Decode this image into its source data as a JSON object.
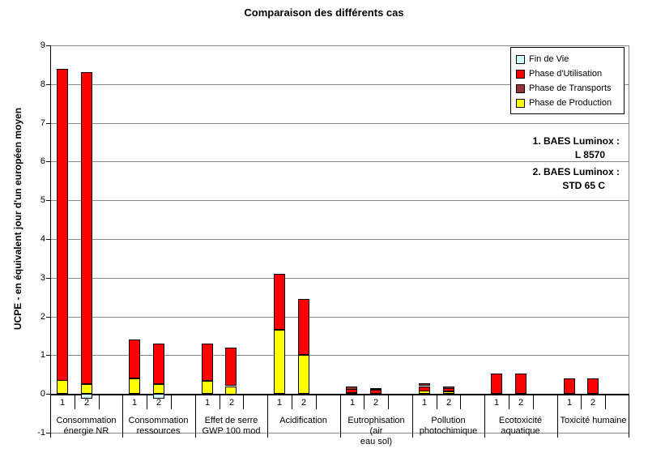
{
  "chart_data": {
    "type": "bar",
    "stacked": true,
    "title": "Comparaison des différents cas",
    "ylabel": "UCPE - en équivalent jour d'un européen moyen",
    "xlabel": "",
    "ylim": [
      -1,
      9
    ],
    "ytick_step": 1,
    "grid": true,
    "legend_position": "top-right",
    "stack_order_bottom_to_top": [
      "production",
      "utilisation",
      "transports"
    ],
    "series_meta": {
      "fin_de_vie": {
        "label": "Fin de Vie",
        "color": "#CCFFFF"
      },
      "utilisation": {
        "label": "Phase d'Utilisation",
        "color": "#FF0000"
      },
      "transports": {
        "label": "Phase de Transports",
        "color": "#993333"
      },
      "production": {
        "label": "Phase de Production",
        "color": "#FFFF00"
      }
    },
    "groups": [
      {
        "label_lines": [
          "Consommation",
          "énergie NR"
        ],
        "bars": [
          {
            "label": "1",
            "production": 0.35,
            "utilisation": 8.05,
            "transports": 0,
            "fin_de_vie": 0
          },
          {
            "label": "2",
            "production": 0.25,
            "utilisation": 8.05,
            "transports": 0,
            "fin_de_vie": -0.12
          }
        ]
      },
      {
        "label_lines": [
          "Consommation",
          "ressources"
        ],
        "bars": [
          {
            "label": "1",
            "production": 0.4,
            "utilisation": 1.0,
            "transports": 0,
            "fin_de_vie": 0
          },
          {
            "label": "2",
            "production": 0.25,
            "utilisation": 1.05,
            "transports": 0,
            "fin_de_vie": -0.12
          }
        ]
      },
      {
        "label_lines": [
          "Effet de serre",
          "GWP 100 mod"
        ],
        "bars": [
          {
            "label": "1",
            "production": 0.33,
            "utilisation": 0.97,
            "transports": 0,
            "fin_de_vie": 0
          },
          {
            "label": "2",
            "production": 0.2,
            "utilisation": 1.0,
            "transports": 0,
            "fin_de_vie": 0
          }
        ]
      },
      {
        "label_lines": [
          "Acidification"
        ],
        "bars": [
          {
            "label": "1",
            "production": 1.65,
            "utilisation": 1.45,
            "transports": 0,
            "fin_de_vie": 0
          },
          {
            "label": "2",
            "production": 1.0,
            "utilisation": 1.45,
            "transports": 0,
            "fin_de_vie": 0
          }
        ]
      },
      {
        "label_lines": [
          "Eutrophisation (air",
          "eau sol)"
        ],
        "bars": [
          {
            "label": "1",
            "production": 0.03,
            "utilisation": 0.1,
            "transports": 0.07,
            "fin_de_vie": 0
          },
          {
            "label": "2",
            "production": 0.0,
            "utilisation": 0.1,
            "transports": 0.05,
            "fin_de_vie": 0
          }
        ]
      },
      {
        "label_lines": [
          "Pollution",
          "photochimique"
        ],
        "bars": [
          {
            "label": "1",
            "production": 0.08,
            "utilisation": 0.12,
            "transports": 0.07,
            "fin_de_vie": 0
          },
          {
            "label": "2",
            "production": 0.07,
            "utilisation": 0.08,
            "transports": 0.05,
            "fin_de_vie": 0
          }
        ]
      },
      {
        "label_lines": [
          "Ecotoxicité",
          "aquatique"
        ],
        "bars": [
          {
            "label": "1",
            "production": 0.0,
            "utilisation": 0.52,
            "transports": 0,
            "fin_de_vie": 0
          },
          {
            "label": "2",
            "production": 0.0,
            "utilisation": 0.53,
            "transports": 0,
            "fin_de_vie": 0
          }
        ]
      },
      {
        "label_lines": [
          "Toxicité humaine"
        ],
        "bars": [
          {
            "label": "1",
            "production": 0.0,
            "utilisation": 0.4,
            "transports": 0,
            "fin_de_vie": 0
          },
          {
            "label": "2",
            "production": 0.0,
            "utilisation": 0.4,
            "transports": 0,
            "fin_de_vie": 0
          }
        ]
      }
    ],
    "annotations": [
      {
        "lines": [
          "1. BAES Luminox :",
          "L 8570"
        ]
      },
      {
        "lines": [
          "2. BAES Luminox :",
          "STD 65 C"
        ]
      }
    ]
  },
  "legend": {
    "items": [
      {
        "label": "Fin de Vie",
        "color": "#CCFFFF"
      },
      {
        "label": "Phase d'Utilisation",
        "color": "#FF0000"
      },
      {
        "label": "Phase de Transports",
        "color": "#993333"
      },
      {
        "label": "Phase de Production",
        "color": "#FFFF00"
      }
    ]
  },
  "colors": {
    "gridline": "#888888",
    "axis": "#000000",
    "background": "#FFFFFF"
  }
}
